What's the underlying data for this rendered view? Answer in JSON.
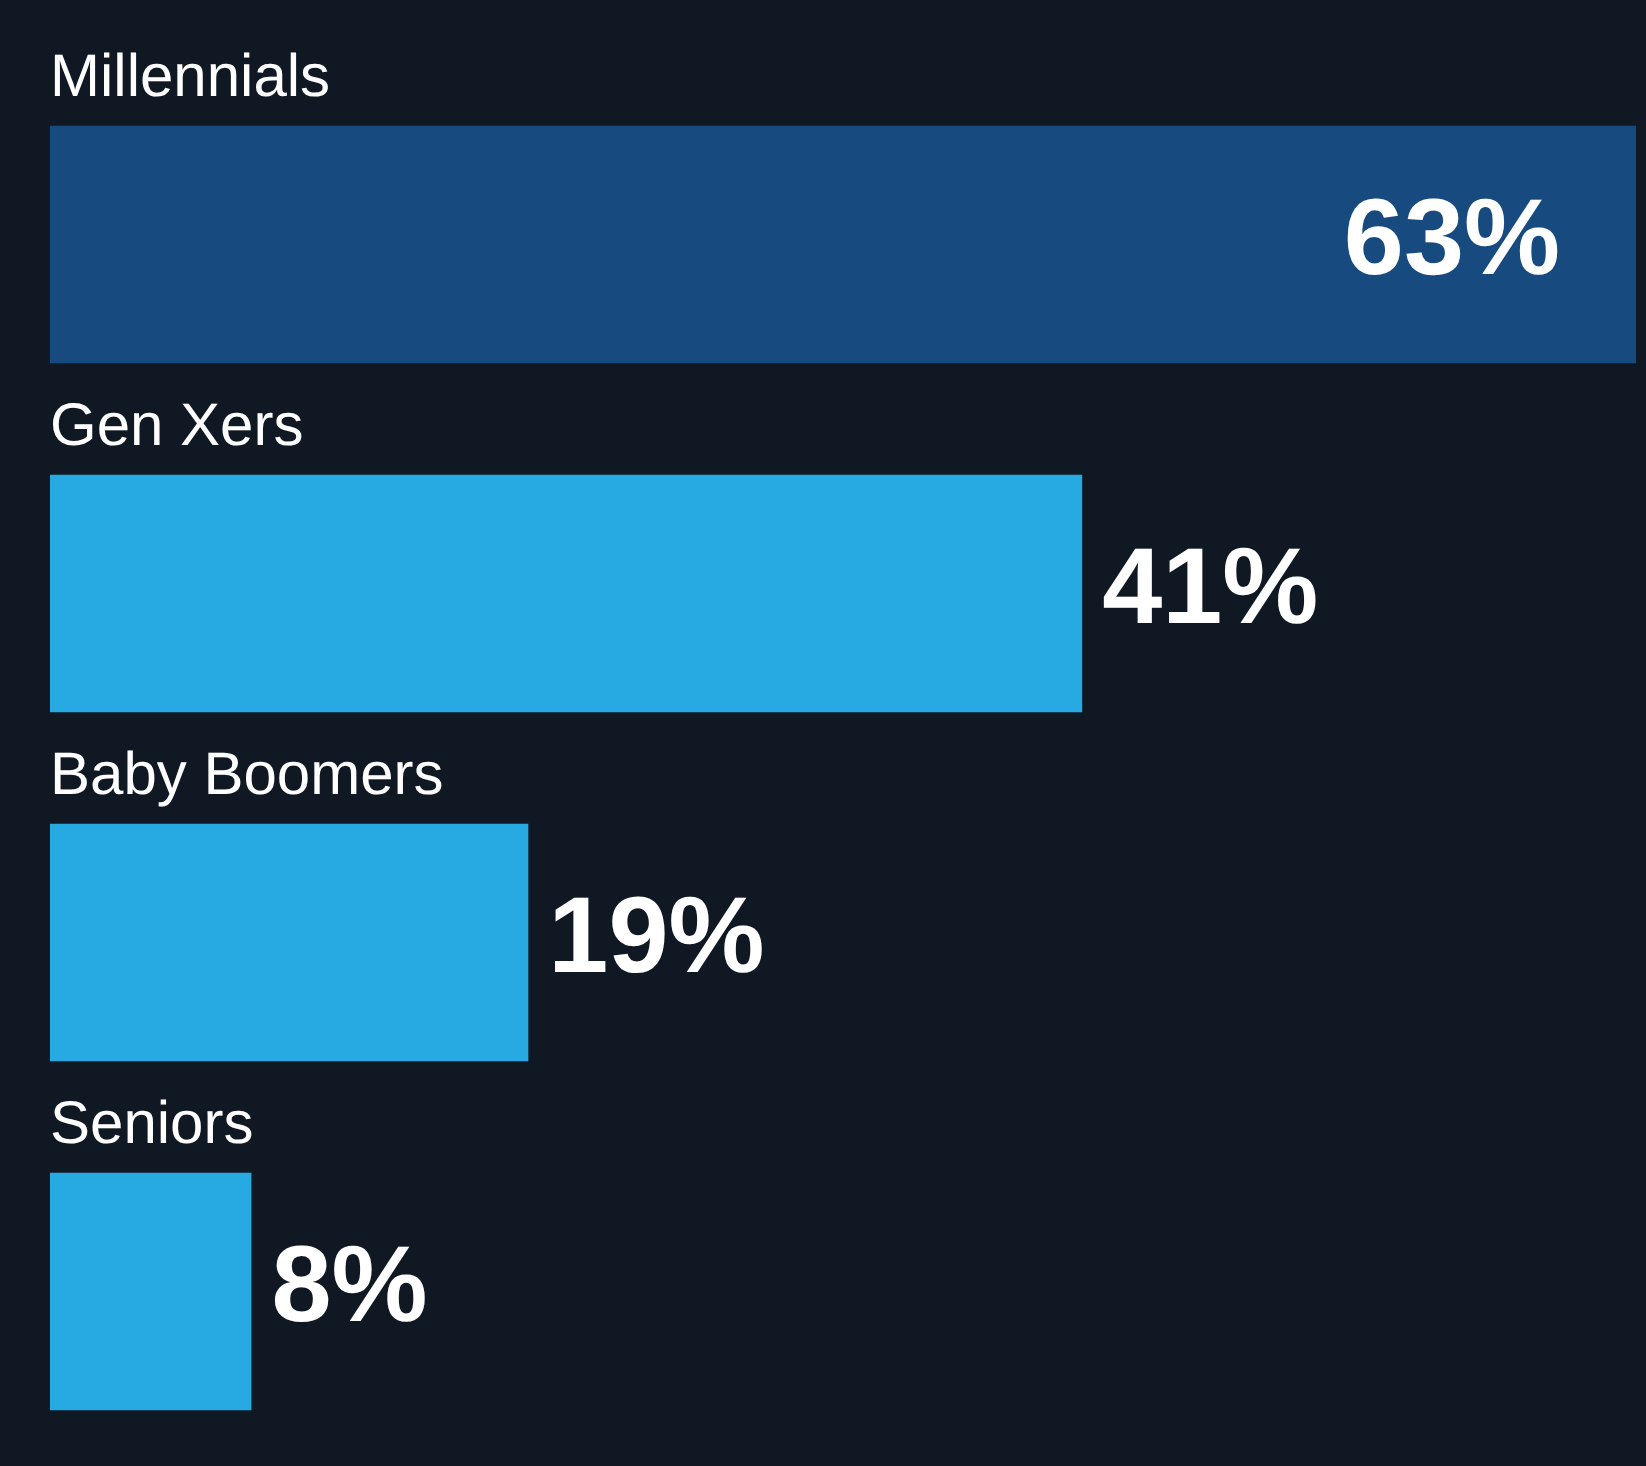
{
  "chart_data": {
    "type": "bar",
    "orientation": "horizontal",
    "categories": [
      "Millennials",
      "Gen Xers",
      "Baby Boomers",
      "Seniors"
    ],
    "values": [
      63,
      41,
      19,
      8
    ],
    "colors": [
      "#174a7e",
      "#27aae1",
      "#27aae1",
      "#27aae1"
    ],
    "value_labels": [
      "63%",
      "41%",
      "19%",
      "8%"
    ]
  }
}
